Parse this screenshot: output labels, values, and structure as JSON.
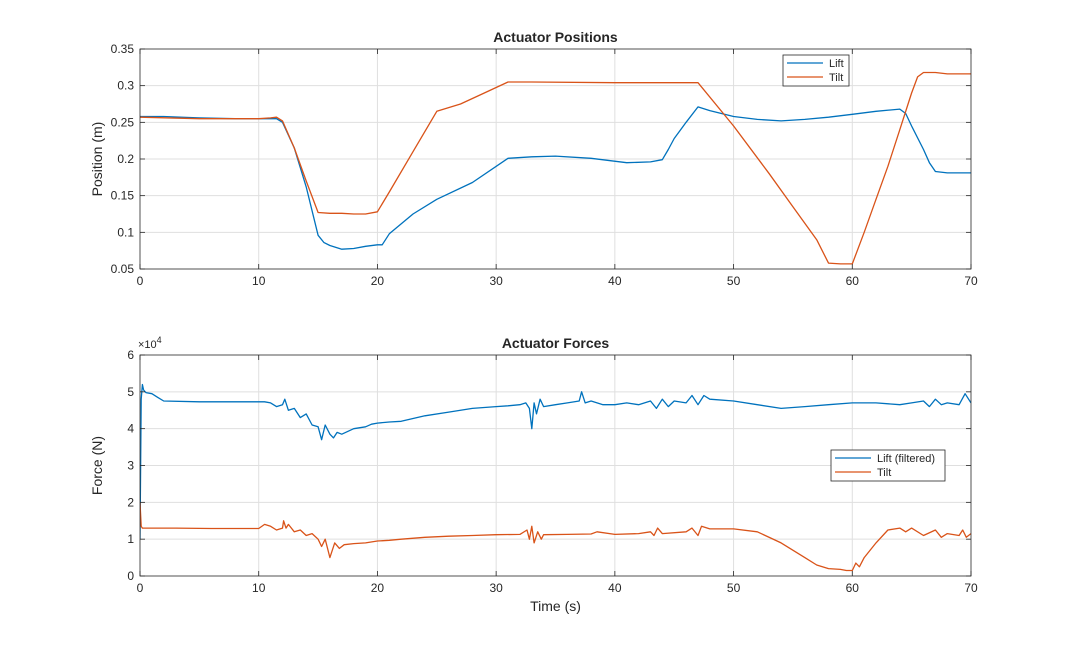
{
  "chart_data": [
    {
      "type": "line",
      "title": "Actuator Positions",
      "xlabel": "",
      "ylabel": "Position (m)",
      "xlim": [
        0,
        70
      ],
      "ylim": [
        0.05,
        0.35
      ],
      "xticks": [
        0,
        10,
        20,
        30,
        40,
        50,
        60,
        70
      ],
      "xtick_labels": [
        "0",
        "10",
        "20",
        "30",
        "40",
        "50",
        "60",
        "70"
      ],
      "yticks": [
        0.05,
        0.1,
        0.15,
        0.2,
        0.25,
        0.3,
        0.35
      ],
      "ytick_labels": [
        "0.05",
        "0.1",
        "0.15",
        "0.2",
        "0.25",
        "0.3",
        "0.35"
      ],
      "grid": true,
      "legend_position": "top-right",
      "series": [
        {
          "name": "Lift",
          "color": "#0072BD",
          "x": [
            0,
            2,
            5,
            8,
            10,
            11,
            11.5,
            12,
            13,
            14,
            15,
            15.5,
            16,
            17,
            18,
            19,
            20,
            20.4,
            21,
            23,
            25,
            28,
            31,
            33,
            35,
            38,
            41,
            43,
            44,
            44.5,
            45,
            46,
            47,
            48,
            50,
            52,
            54,
            56,
            58,
            60,
            62,
            64,
            64.5,
            65,
            66,
            66.5,
            67,
            68,
            70
          ],
          "y": [
            0.258,
            0.258,
            0.256,
            0.255,
            0.255,
            0.255,
            0.255,
            0.25,
            0.215,
            0.162,
            0.096,
            0.086,
            0.082,
            0.077,
            0.078,
            0.081,
            0.083,
            0.083,
            0.098,
            0.125,
            0.145,
            0.168,
            0.201,
            0.203,
            0.204,
            0.201,
            0.195,
            0.196,
            0.199,
            0.213,
            0.228,
            0.25,
            0.271,
            0.266,
            0.258,
            0.254,
            0.252,
            0.254,
            0.257,
            0.261,
            0.265,
            0.268,
            0.262,
            0.245,
            0.213,
            0.195,
            0.183,
            0.181,
            0.181
          ]
        },
        {
          "name": "Tilt",
          "color": "#D95319",
          "x": [
            0,
            5,
            10,
            11,
            11.5,
            12,
            13,
            14,
            15,
            16,
            17,
            18,
            19,
            20,
            21,
            23,
            25,
            27,
            29,
            31,
            33,
            40,
            47,
            50,
            53,
            55,
            57,
            58,
            59,
            60,
            61,
            62,
            63,
            64,
            65,
            65.5,
            66,
            67,
            68,
            70
          ],
          "y": [
            0.257,
            0.255,
            0.255,
            0.256,
            0.257,
            0.252,
            0.215,
            0.17,
            0.127,
            0.126,
            0.126,
            0.125,
            0.125,
            0.128,
            0.155,
            0.21,
            0.265,
            0.275,
            0.29,
            0.305,
            0.305,
            0.304,
            0.304,
            0.245,
            0.18,
            0.135,
            0.09,
            0.058,
            0.057,
            0.057,
            0.1,
            0.145,
            0.19,
            0.24,
            0.29,
            0.312,
            0.318,
            0.318,
            0.316,
            0.316
          ]
        }
      ]
    },
    {
      "type": "line",
      "title": "Actuator Forces",
      "xlabel": "Time (s)",
      "ylabel": "Force (N)",
      "y_exponent_label": "×10",
      "y_exponent_power": "4",
      "xlim": [
        0,
        70
      ],
      "ylim": [
        0,
        6
      ],
      "xticks": [
        0,
        10,
        20,
        30,
        40,
        50,
        60,
        70
      ],
      "xtick_labels": [
        "0",
        "10",
        "20",
        "30",
        "40",
        "50",
        "60",
        "70"
      ],
      "yticks": [
        0,
        1,
        2,
        3,
        4,
        5,
        6
      ],
      "ytick_labels": [
        "0",
        "1",
        "2",
        "3",
        "4",
        "5",
        "6"
      ],
      "grid": true,
      "legend_position": "middle-right",
      "series": [
        {
          "name": "Lift (filtered)",
          "color": "#0072BD",
          "x": [
            0,
            0.1,
            0.2,
            0.3,
            0.5,
            1,
            1.5,
            2,
            5,
            10,
            10.5,
            11,
            11.5,
            12,
            12.2,
            12.5,
            13,
            13.5,
            14,
            14.5,
            15,
            15.3,
            15.6,
            16,
            16.3,
            16.6,
            17,
            18,
            19,
            19.5,
            20,
            21,
            22,
            24,
            26,
            28,
            30,
            31,
            32,
            32.5,
            32.8,
            33,
            33.2,
            33.4,
            33.7,
            34,
            35,
            36,
            37,
            37.2,
            37.5,
            38,
            39,
            40,
            41,
            42,
            43,
            43.5,
            44,
            44.5,
            45,
            46,
            46.5,
            47,
            47.5,
            48,
            50,
            52,
            54,
            56,
            58,
            60,
            62,
            64,
            65,
            66,
            66.5,
            67,
            67.5,
            68,
            69,
            69.5,
            70
          ],
          "y": [
            1.0,
            4.8,
            5.2,
            5.05,
            4.98,
            4.95,
            4.85,
            4.75,
            4.73,
            4.73,
            4.73,
            4.7,
            4.6,
            4.65,
            4.8,
            4.5,
            4.55,
            4.3,
            4.4,
            4.1,
            4.05,
            3.7,
            4.1,
            3.85,
            3.75,
            3.9,
            3.85,
            4.0,
            4.05,
            4.12,
            4.15,
            4.18,
            4.2,
            4.35,
            4.45,
            4.55,
            4.6,
            4.62,
            4.65,
            4.7,
            4.55,
            4.0,
            4.7,
            4.4,
            4.8,
            4.6,
            4.65,
            4.7,
            4.75,
            5.0,
            4.7,
            4.75,
            4.65,
            4.65,
            4.7,
            4.65,
            4.75,
            4.55,
            4.8,
            4.6,
            4.75,
            4.7,
            4.9,
            4.65,
            4.9,
            4.8,
            4.75,
            4.65,
            4.55,
            4.6,
            4.65,
            4.7,
            4.7,
            4.65,
            4.7,
            4.75,
            4.6,
            4.8,
            4.65,
            4.7,
            4.65,
            4.95,
            4.7
          ]
        },
        {
          "name": "Tilt",
          "color": "#D95319",
          "x": [
            0,
            0.1,
            0.2,
            0.5,
            1,
            3,
            6,
            8,
            10,
            10.5,
            11,
            11.5,
            12,
            12.1,
            12.3,
            12.5,
            13,
            13.5,
            14,
            14.5,
            15,
            15.3,
            15.6,
            16,
            16.4,
            16.8,
            17.2,
            18,
            19,
            20,
            21,
            22,
            24,
            26,
            28,
            30,
            32,
            32.6,
            32.8,
            33,
            33.2,
            33.5,
            33.8,
            34,
            36,
            38,
            38.5,
            40,
            42,
            43,
            43.3,
            43.6,
            44,
            46,
            46.5,
            47,
            47.3,
            48,
            50,
            52,
            54,
            56,
            57,
            58,
            59,
            59.5,
            60,
            60.3,
            60.6,
            61,
            62,
            63,
            64,
            64.5,
            65,
            66,
            67,
            67.5,
            68,
            69,
            69.3,
            69.6,
            70
          ],
          "y": [
            2.0,
            1.35,
            1.3,
            1.3,
            1.3,
            1.3,
            1.29,
            1.29,
            1.29,
            1.4,
            1.35,
            1.25,
            1.3,
            1.5,
            1.3,
            1.4,
            1.2,
            1.25,
            1.1,
            1.15,
            1.0,
            0.8,
            1.0,
            0.5,
            0.9,
            0.75,
            0.85,
            0.88,
            0.9,
            0.95,
            0.97,
            1.0,
            1.05,
            1.08,
            1.1,
            1.12,
            1.13,
            1.25,
            1.0,
            1.35,
            0.9,
            1.2,
            1.0,
            1.12,
            1.13,
            1.14,
            1.2,
            1.13,
            1.15,
            1.2,
            1.1,
            1.3,
            1.15,
            1.2,
            1.3,
            1.1,
            1.35,
            1.28,
            1.28,
            1.2,
            0.9,
            0.5,
            0.3,
            0.2,
            0.18,
            0.15,
            0.15,
            0.35,
            0.25,
            0.5,
            0.9,
            1.25,
            1.3,
            1.2,
            1.3,
            1.1,
            1.25,
            1.05,
            1.15,
            1.1,
            1.25,
            1.05,
            1.15
          ]
        }
      ]
    }
  ]
}
